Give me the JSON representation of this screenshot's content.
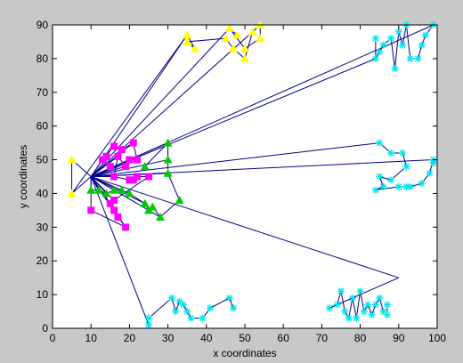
{
  "chart_data": {
    "type": "scatter",
    "xlabel": "x coordinates",
    "ylabel": "y coordinates",
    "xlim": [
      0,
      100
    ],
    "ylim": [
      0,
      90
    ],
    "xticks": [
      "0",
      "10",
      "20",
      "30",
      "40",
      "50",
      "60",
      "70",
      "80",
      "90",
      "100"
    ],
    "yticks": [
      "0",
      "10",
      "20",
      "30",
      "40",
      "50",
      "60",
      "70",
      "80",
      "90"
    ],
    "grid": false,
    "colors": {
      "figure_bg": "#c8c8c8",
      "plot_bg": "#ffffff",
      "line": "#00008b",
      "yellow": "#ffff00",
      "cyan": "#00e5ee",
      "magenta": "#ff00ff",
      "green": "#00cc00"
    },
    "hub": [
      10,
      45
    ],
    "series": [
      {
        "color_key": "yellow",
        "marker": "triangle",
        "points": [
          [
            5,
            50
          ],
          [
            5,
            40
          ],
          [
            35,
            87
          ],
          [
            35,
            85
          ],
          [
            37,
            83
          ],
          [
            45,
            86
          ],
          [
            46,
            89
          ],
          [
            47,
            83
          ],
          [
            48,
            87
          ],
          [
            50,
            83
          ],
          [
            50,
            80
          ],
          [
            52,
            88
          ],
          [
            54,
            90
          ],
          [
            54,
            86
          ]
        ],
        "route": [
          [
            5,
            50
          ],
          [
            5,
            40
          ],
          [
            35,
            87
          ],
          [
            37,
            83
          ],
          [
            35,
            85
          ],
          [
            45,
            86
          ],
          [
            47,
            83
          ],
          [
            50,
            80
          ],
          [
            52,
            88
          ],
          [
            54,
            90
          ],
          [
            54,
            86
          ],
          [
            50,
            83
          ],
          [
            46,
            89
          ],
          [
            48,
            87
          ]
        ]
      },
      {
        "color_key": "magenta",
        "marker": "square",
        "points": [
          [
            10,
            35
          ],
          [
            13,
            50
          ],
          [
            14,
            51
          ],
          [
            15,
            37
          ],
          [
            15,
            48
          ],
          [
            16,
            54
          ],
          [
            16,
            45
          ],
          [
            16,
            35
          ],
          [
            17,
            33
          ],
          [
            17,
            51
          ],
          [
            18,
            53
          ],
          [
            19,
            30
          ],
          [
            19,
            48
          ],
          [
            20,
            44
          ],
          [
            20,
            50
          ],
          [
            21,
            55
          ],
          [
            21,
            44
          ],
          [
            22,
            50
          ],
          [
            22,
            45
          ],
          [
            25,
            45
          ],
          [
            16,
            38
          ]
        ],
        "route": [
          [
            13,
            50
          ],
          [
            16,
            54
          ],
          [
            18,
            53
          ],
          [
            21,
            55
          ],
          [
            22,
            50
          ],
          [
            20,
            50
          ],
          [
            19,
            48
          ],
          [
            17,
            51
          ],
          [
            16,
            45
          ],
          [
            20,
            44
          ],
          [
            22,
            45
          ],
          [
            25,
            45
          ],
          [
            16,
            38
          ],
          [
            15,
            37
          ],
          [
            16,
            35
          ],
          [
            17,
            33
          ],
          [
            19,
            30
          ],
          [
            10,
            35
          ]
        ]
      },
      {
        "color_key": "green",
        "marker": "triangle",
        "points": [
          [
            10,
            41
          ],
          [
            12,
            41
          ],
          [
            14,
            40
          ],
          [
            16,
            41
          ],
          [
            18,
            41
          ],
          [
            20,
            40
          ],
          [
            24,
            37
          ],
          [
            25,
            35
          ],
          [
            26,
            36
          ],
          [
            28,
            33
          ],
          [
            30,
            55
          ],
          [
            30,
            50
          ],
          [
            30,
            46
          ],
          [
            33,
            38
          ],
          [
            24,
            48
          ]
        ],
        "route": [
          [
            10,
            41
          ],
          [
            12,
            41
          ],
          [
            14,
            40
          ],
          [
            16,
            41
          ],
          [
            18,
            41
          ],
          [
            20,
            40
          ],
          [
            24,
            37
          ],
          [
            25,
            35
          ],
          [
            26,
            36
          ],
          [
            28,
            33
          ],
          [
            33,
            38
          ],
          [
            30,
            46
          ],
          [
            30,
            50
          ],
          [
            30,
            55
          ],
          [
            24,
            48
          ]
        ]
      },
      {
        "color_key": "cyan",
        "marker": "star",
        "points": [
          [
            25,
            1
          ],
          [
            25,
            3
          ],
          [
            31,
            9
          ],
          [
            32,
            5
          ],
          [
            33,
            8
          ],
          [
            34,
            7
          ],
          [
            35,
            5
          ],
          [
            36,
            3
          ],
          [
            39,
            3
          ],
          [
            41,
            6
          ],
          [
            46,
            9
          ],
          [
            47,
            6
          ],
          [
            72,
            6
          ],
          [
            74,
            7
          ],
          [
            75,
            11
          ],
          [
            76,
            5
          ],
          [
            77,
            3
          ],
          [
            78,
            9
          ],
          [
            79,
            3
          ],
          [
            80,
            11
          ],
          [
            81,
            5
          ],
          [
            82,
            7
          ],
          [
            83,
            4
          ],
          [
            84,
            7
          ],
          [
            85,
            9
          ],
          [
            86,
            5
          ],
          [
            87,
            4
          ],
          [
            87,
            7
          ],
          [
            85,
            55
          ],
          [
            88,
            52
          ],
          [
            91,
            52
          ],
          [
            92,
            48
          ],
          [
            85,
            45
          ],
          [
            86,
            42
          ],
          [
            84,
            41
          ],
          [
            88,
            44
          ],
          [
            90,
            42
          ],
          [
            92,
            42
          ],
          [
            93,
            42
          ],
          [
            96,
            43
          ],
          [
            98,
            46
          ],
          [
            99,
            50
          ],
          [
            99,
            49
          ],
          [
            84,
            80
          ],
          [
            85,
            82
          ],
          [
            86,
            84
          ],
          [
            88,
            86
          ],
          [
            89,
            77
          ],
          [
            90,
            88
          ],
          [
            91,
            84
          ],
          [
            92,
            90
          ],
          [
            93,
            80
          ],
          [
            95,
            80
          ],
          [
            96,
            84
          ],
          [
            97,
            87
          ],
          [
            99,
            90
          ],
          [
            84,
            86
          ]
        ],
        "route": [
          [
            99,
            90
          ],
          [
            97,
            87
          ],
          [
            96,
            84
          ],
          [
            95,
            80
          ],
          [
            93,
            80
          ],
          [
            92,
            90
          ],
          [
            91,
            84
          ],
          [
            90,
            88
          ],
          [
            89,
            77
          ],
          [
            88,
            86
          ],
          [
            86,
            84
          ],
          [
            85,
            82
          ],
          [
            84,
            80
          ],
          [
            84,
            86
          ]
        ]
      }
    ],
    "routes_extra": [
      [
        [
          25,
          1
        ],
        [
          25,
          3
        ],
        [
          31,
          9
        ],
        [
          32,
          5
        ],
        [
          33,
          8
        ],
        [
          34,
          7
        ],
        [
          35,
          5
        ],
        [
          36,
          3
        ],
        [
          39,
          3
        ],
        [
          41,
          6
        ],
        [
          46,
          9
        ],
        [
          47,
          6
        ]
      ],
      [
        [
          90,
          15
        ],
        [
          72,
          6
        ],
        [
          74,
          7
        ],
        [
          75,
          11
        ],
        [
          76,
          5
        ],
        [
          77,
          3
        ],
        [
          78,
          9
        ],
        [
          79,
          3
        ],
        [
          80,
          11
        ],
        [
          81,
          5
        ],
        [
          82,
          7
        ],
        [
          83,
          4
        ],
        [
          84,
          7
        ],
        [
          85,
          9
        ],
        [
          86,
          5
        ],
        [
          87,
          4
        ],
        [
          87,
          7
        ]
      ],
      [
        [
          85,
          55
        ],
        [
          88,
          52
        ],
        [
          91,
          52
        ],
        [
          92,
          48
        ],
        [
          88,
          44
        ],
        [
          85,
          45
        ],
        [
          86,
          42
        ],
        [
          84,
          41
        ],
        [
          90,
          42
        ],
        [
          92,
          42
        ],
        [
          93,
          42
        ],
        [
          96,
          43
        ],
        [
          98,
          46
        ],
        [
          99,
          50
        ],
        [
          99,
          49
        ]
      ]
    ],
    "hub_connections": [
      [
        5,
        50
      ],
      [
        5,
        40
      ],
      [
        35,
        87
      ],
      [
        46,
        89
      ],
      [
        54,
        90
      ],
      [
        99,
        90
      ],
      [
        99,
        50
      ],
      [
        85,
        55
      ],
      [
        30,
        55
      ],
      [
        30,
        50
      ],
      [
        30,
        46
      ],
      [
        90,
        15
      ],
      [
        25,
        1
      ],
      [
        84,
        80
      ],
      [
        13,
        50
      ],
      [
        10,
        35
      ],
      [
        28,
        33
      ],
      [
        24,
        37
      ],
      [
        20,
        40
      ],
      [
        16,
        41
      ],
      [
        14,
        40
      ],
      [
        12,
        41
      ],
      [
        10,
        41
      ],
      [
        21,
        55
      ],
      [
        22,
        50
      ],
      [
        19,
        48
      ],
      [
        17,
        51
      ],
      [
        16,
        45
      ],
      [
        16,
        38
      ],
      [
        17,
        33
      ],
      [
        19,
        30
      ],
      [
        15,
        37
      ]
    ]
  }
}
